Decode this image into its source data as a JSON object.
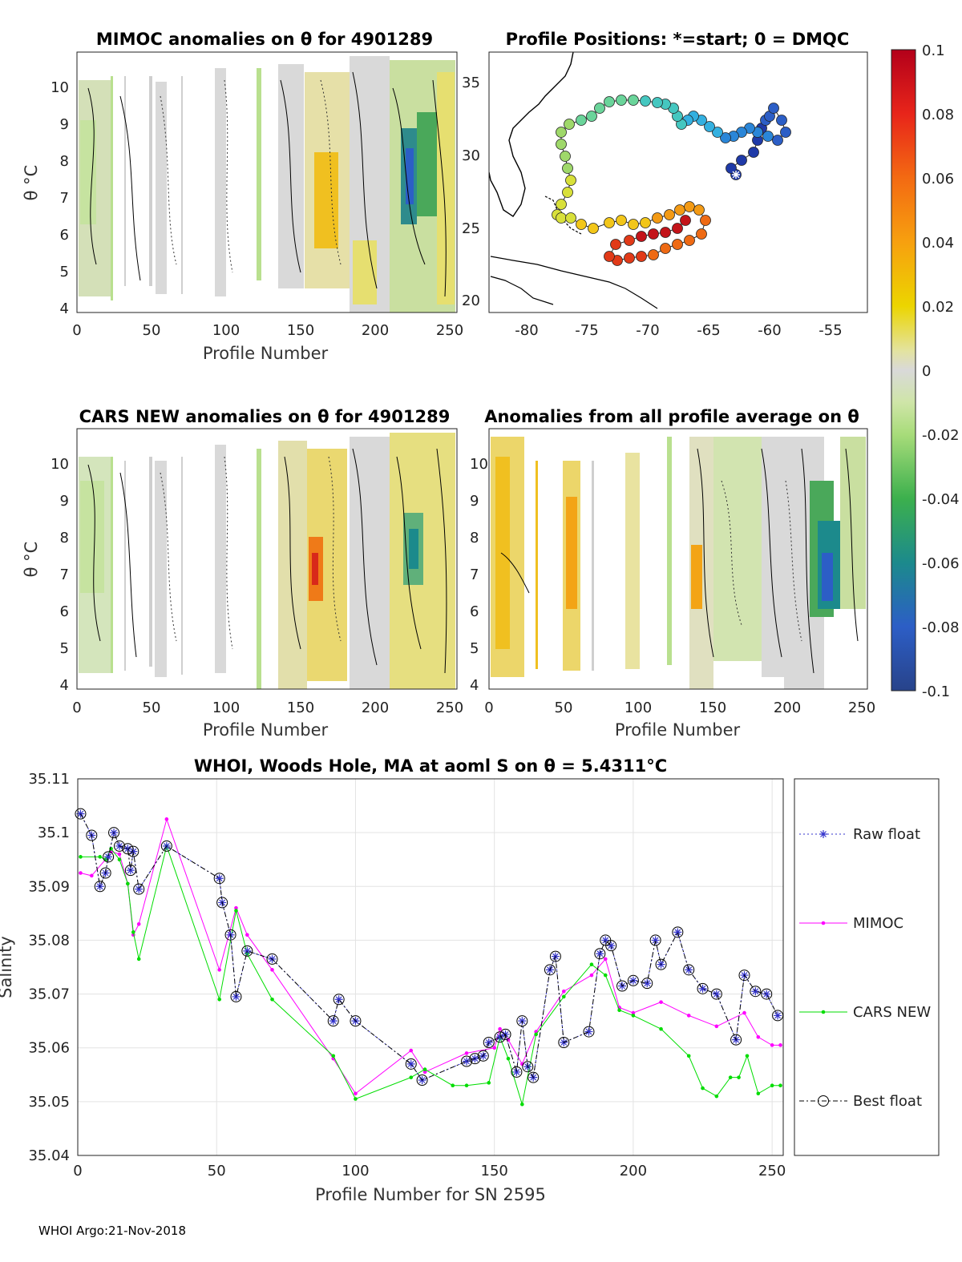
{
  "panels": {
    "mimoc": {
      "title": "MIMOC anomalies on θ  for 4901289",
      "xlabel": "Profile Number",
      "ylabel": "θ °C",
      "xticks": [
        "0",
        "50",
        "100",
        "150",
        "200",
        "250"
      ],
      "yticks": [
        "4",
        "5",
        "6",
        "7",
        "8",
        "9",
        "10"
      ]
    },
    "positions": {
      "title": "Profile Positions: *=start; 0 = DMQC",
      "xticks": [
        "-80",
        "-75",
        "-70",
        "-65",
        "-60",
        "-55"
      ],
      "yticks": [
        "20",
        "25",
        "30",
        "35"
      ]
    },
    "cars": {
      "title": "CARS NEW anomalies on θ for 4901289",
      "xlabel": "Profile Number",
      "ylabel": "θ °C",
      "xticks": [
        "0",
        "50",
        "100",
        "150",
        "200",
        "250"
      ],
      "yticks": [
        "4",
        "5",
        "6",
        "7",
        "8",
        "9",
        "10"
      ]
    },
    "allavg": {
      "title": "Anomalies from all profile average on θ",
      "xlabel": "Profile Number",
      "xticks": [
        "0",
        "50",
        "100",
        "150",
        "200",
        "250"
      ],
      "yticks": [
        "4",
        "5",
        "6",
        "7",
        "8",
        "9",
        "10"
      ]
    },
    "colorbar": {
      "labels": [
        "0.1",
        "0.08",
        "0.06",
        "0.04",
        "0.02",
        "0",
        "-0.02",
        "-0.04",
        "-0.06",
        "-0.08",
        "-0.1"
      ]
    }
  },
  "chart_data": {
    "type": "line",
    "title": "WHOI, Woods Hole, MA at aoml S on θ = 5.4311°C",
    "xlabel": "Profile Number for SN 2595",
    "ylabel": "Salinity",
    "xlim": [
      0,
      254
    ],
    "ylim": [
      35.04,
      35.11
    ],
    "xticks": [
      "0",
      "50",
      "100",
      "150",
      "200",
      "250"
    ],
    "yticks": [
      "35.04",
      "35.05",
      "35.06",
      "35.07",
      "35.08",
      "35.09",
      "35.1",
      "35.11"
    ],
    "series": [
      {
        "name": "Raw float",
        "color": "#3333cc",
        "x": [
          1,
          5,
          8,
          10,
          11,
          13,
          15,
          18,
          19,
          20,
          22,
          32,
          51,
          52,
          55,
          57,
          61,
          70,
          92,
          94,
          100,
          120,
          124,
          140,
          143,
          146,
          148,
          152,
          154,
          158,
          160,
          162,
          164,
          170,
          172,
          175,
          184,
          188,
          190,
          192,
          196,
          200,
          205,
          208,
          210,
          216,
          220,
          225,
          230,
          237,
          240,
          244,
          248,
          252
        ],
        "y": [
          35.1035,
          35.0995,
          35.09,
          35.0925,
          35.0955,
          35.1,
          35.0975,
          35.097,
          35.093,
          35.0965,
          35.0895,
          35.0975,
          35.0915,
          35.087,
          35.081,
          35.0695,
          35.078,
          35.0765,
          35.065,
          35.069,
          35.065,
          35.057,
          35.054,
          35.0575,
          35.058,
          35.0585,
          35.061,
          35.062,
          35.0625,
          35.0555,
          35.065,
          35.0565,
          35.0545,
          35.0745,
          35.077,
          35.061,
          35.063,
          35.0775,
          35.08,
          35.079,
          35.0715,
          35.0725,
          35.072,
          35.08,
          35.0755,
          35.0815,
          35.0745,
          35.071,
          35.07,
          35.0615,
          35.0735,
          35.0705,
          35.07,
          35.066
        ]
      },
      {
        "name": "MIMOC",
        "color": "#ff00ff",
        "x": [
          1,
          5,
          10,
          12,
          15,
          18,
          20,
          22,
          32,
          51,
          57,
          61,
          70,
          92,
          100,
          120,
          125,
          140,
          150,
          152,
          155,
          160,
          165,
          175,
          185,
          190,
          195,
          200,
          210,
          220,
          230,
          240,
          245,
          250,
          253
        ],
        "y": [
          35.0925,
          35.092,
          35.095,
          35.0965,
          35.096,
          35.0905,
          35.081,
          35.083,
          35.1025,
          35.0745,
          35.086,
          35.081,
          35.0745,
          35.058,
          35.0515,
          35.0595,
          35.0555,
          35.059,
          35.06,
          35.0635,
          35.0615,
          35.057,
          35.063,
          35.0705,
          35.0735,
          35.0765,
          35.0675,
          35.0665,
          35.0685,
          35.066,
          35.064,
          35.0665,
          35.062,
          35.0605,
          35.0605
        ]
      },
      {
        "name": "CARS NEW",
        "color": "#00dd00",
        "x": [
          1,
          8,
          10,
          12,
          15,
          18,
          20,
          22,
          32,
          51,
          57,
          61,
          70,
          92,
          100,
          120,
          125,
          135,
          140,
          148,
          152,
          155,
          160,
          165,
          175,
          185,
          190,
          195,
          200,
          210,
          220,
          225,
          230,
          235,
          238,
          241,
          245,
          250,
          253
        ],
        "y": [
          35.0955,
          35.0955,
          35.095,
          35.097,
          35.095,
          35.0905,
          35.0815,
          35.0765,
          35.0975,
          35.069,
          35.0855,
          35.0775,
          35.069,
          35.0585,
          35.0505,
          35.0545,
          35.056,
          35.053,
          35.053,
          35.0535,
          35.062,
          35.058,
          35.0495,
          35.0625,
          35.0695,
          35.0755,
          35.0735,
          35.067,
          35.066,
          35.0635,
          35.0585,
          35.0525,
          35.051,
          35.0545,
          35.0545,
          35.0585,
          35.0515,
          35.053,
          35.053
        ]
      },
      {
        "name": "Best float",
        "color": "#000000",
        "x": [
          1,
          5,
          8,
          10,
          11,
          13,
          15,
          18,
          19,
          20,
          22,
          32,
          51,
          52,
          55,
          57,
          61,
          70,
          92,
          94,
          100,
          120,
          124,
          140,
          143,
          146,
          148,
          152,
          154,
          158,
          160,
          162,
          164,
          170,
          172,
          175,
          184,
          188,
          190,
          192,
          196,
          200,
          205,
          208,
          210,
          216,
          220,
          225,
          230,
          237,
          240,
          244,
          248,
          252
        ],
        "y": [
          35.1035,
          35.0995,
          35.09,
          35.0925,
          35.0955,
          35.1,
          35.0975,
          35.097,
          35.093,
          35.0965,
          35.0895,
          35.0975,
          35.0915,
          35.087,
          35.081,
          35.0695,
          35.078,
          35.0765,
          35.065,
          35.069,
          35.065,
          35.057,
          35.054,
          35.0575,
          35.058,
          35.0585,
          35.061,
          35.062,
          35.0625,
          35.0555,
          35.065,
          35.0565,
          35.0545,
          35.0745,
          35.077,
          35.061,
          35.063,
          35.0775,
          35.08,
          35.079,
          35.0715,
          35.0725,
          35.072,
          35.08,
          35.0755,
          35.0815,
          35.0745,
          35.071,
          35.07,
          35.0615,
          35.0735,
          35.0705,
          35.07,
          35.066
        ]
      }
    ]
  },
  "footer": "WHOI Argo:21-Nov-2018"
}
